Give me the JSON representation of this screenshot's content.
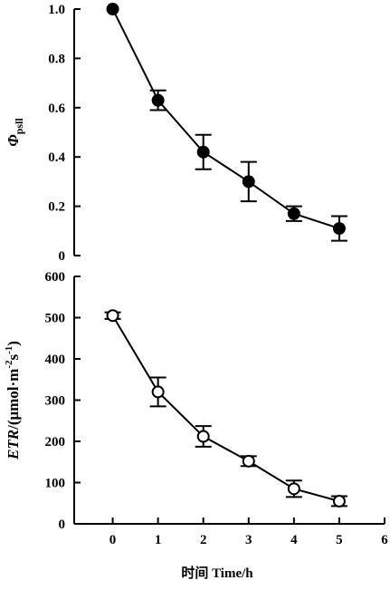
{
  "chart_data": [
    {
      "type": "line",
      "ylabel": "Φpsll",
      "ylabel_main": "Φ",
      "ylabel_sub": "psll",
      "x": [
        0,
        1,
        2,
        3,
        4,
        5
      ],
      "series": [
        {
          "values": [
            1.0,
            0.63,
            0.42,
            0.3,
            0.17,
            0.11
          ],
          "error": [
            0.0,
            0.04,
            0.07,
            0.08,
            0.03,
            0.05
          ],
          "marker": "filled-circle"
        }
      ],
      "ylim": [
        0,
        1.0
      ],
      "yticks": [
        "0",
        "0.2",
        "0.4",
        "0.6",
        "0.8",
        "1.0"
      ]
    },
    {
      "type": "line",
      "ylabel": "ETR/(μmol·m-2s-1)",
      "ylabel_parts": [
        "ETR",
        "/(μmol·m",
        "-2",
        "s",
        "-1",
        ")"
      ],
      "x": [
        0,
        1,
        2,
        3,
        4,
        5
      ],
      "series": [
        {
          "values": [
            505,
            320,
            212,
            152,
            85,
            55
          ],
          "error": [
            8,
            35,
            25,
            12,
            20,
            12
          ],
          "marker": "open-circle"
        }
      ],
      "ylim": [
        0,
        600
      ],
      "yticks": [
        "0",
        "100",
        "200",
        "300",
        "400",
        "500",
        "600"
      ]
    }
  ],
  "xaxis": {
    "label": "时间 Time/h",
    "xlim": [
      -0.85,
      6
    ],
    "ticks": [
      "0",
      "1",
      "2",
      "3",
      "4",
      "5",
      "6"
    ]
  }
}
